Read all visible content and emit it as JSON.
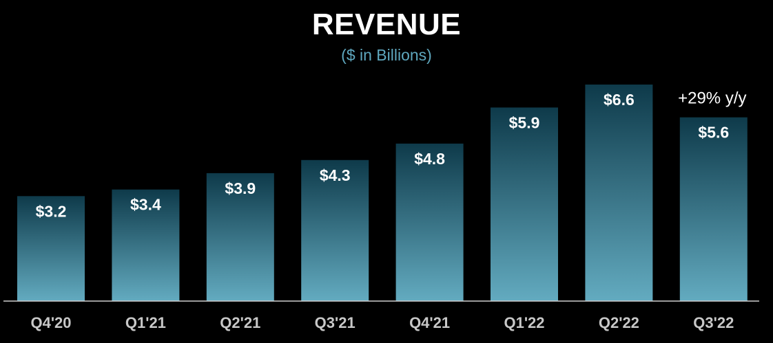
{
  "chart_data": {
    "type": "bar",
    "title": "REVENUE",
    "subtitle": "($ in Billions)",
    "categories": [
      "Q4'20",
      "Q1'21",
      "Q2'21",
      "Q3'21",
      "Q4'21",
      "Q1'22",
      "Q2'22",
      "Q3'22"
    ],
    "values": [
      3.2,
      3.4,
      3.9,
      4.3,
      4.8,
      5.9,
      6.6,
      5.6
    ],
    "data_labels": [
      "$3.2",
      "$3.4",
      "$3.9",
      "$4.3",
      "$4.8",
      "$5.9",
      "$6.6",
      "$5.6"
    ],
    "annotation": {
      "text": "+29% y/y",
      "category": "Q3'22"
    },
    "xlabel": "",
    "ylabel": "",
    "ylim": [
      0,
      6.6
    ],
    "grid": false,
    "legend": "none"
  },
  "colors": {
    "background": "#000000",
    "bar_top": "#0e3a4a",
    "bar_bottom": "#63abc0",
    "title": "#ffffff",
    "subtitle": "#5fa8bf",
    "tick_label": "#c8c8c8",
    "data_label": "#ffffff",
    "axis_line": "#d0d0d0"
  }
}
